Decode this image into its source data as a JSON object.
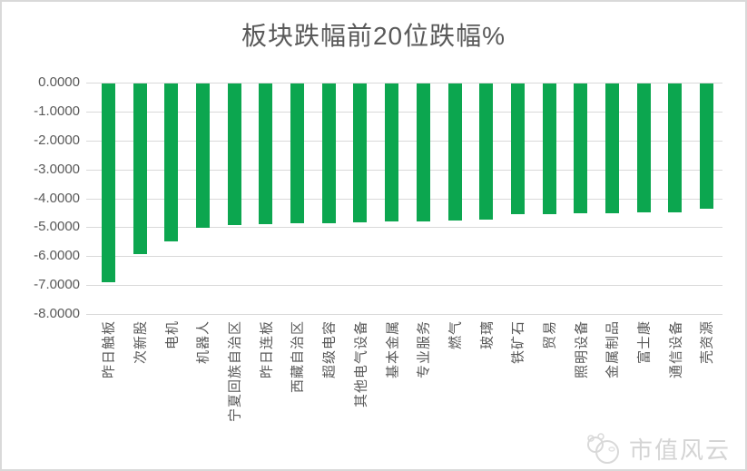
{
  "chart_data": {
    "type": "bar",
    "title": "板块跌幅前20位跌幅%",
    "categories": [
      "昨日触板",
      "次新股",
      "电机",
      "机器人",
      "宁夏回族自治区",
      "昨日连板",
      "西藏自治区",
      "超级电容",
      "其他电气设备",
      "基本金属",
      "专业服务",
      "燃气",
      "玻璃",
      "铁矿石",
      "贸易",
      "照明设备",
      "金属制品",
      "富士康",
      "通信设备",
      "壳资源"
    ],
    "values": [
      -6.87,
      -5.9,
      -5.46,
      -4.99,
      -4.88,
      -4.87,
      -4.84,
      -4.83,
      -4.81,
      -4.78,
      -4.76,
      -4.74,
      -4.72,
      -4.52,
      -4.51,
      -4.5,
      -4.49,
      -4.47,
      -4.44,
      -4.34
    ],
    "xlabel": "",
    "ylabel": "",
    "ylim": [
      -8,
      0
    ],
    "y_ticks": [
      "0.0000",
      "-1.0000",
      "-2.0000",
      "-3.0000",
      "-4.0000",
      "-5.0000",
      "-6.0000",
      "-7.0000",
      "-8.0000"
    ],
    "grid": true,
    "legend_position": "none",
    "bar_color": "#0CA64F",
    "gridline_color": "#D9D9D9",
    "axis_text_color": "#595959",
    "title_color": "#595959"
  },
  "watermark": {
    "text": "市值风云"
  }
}
